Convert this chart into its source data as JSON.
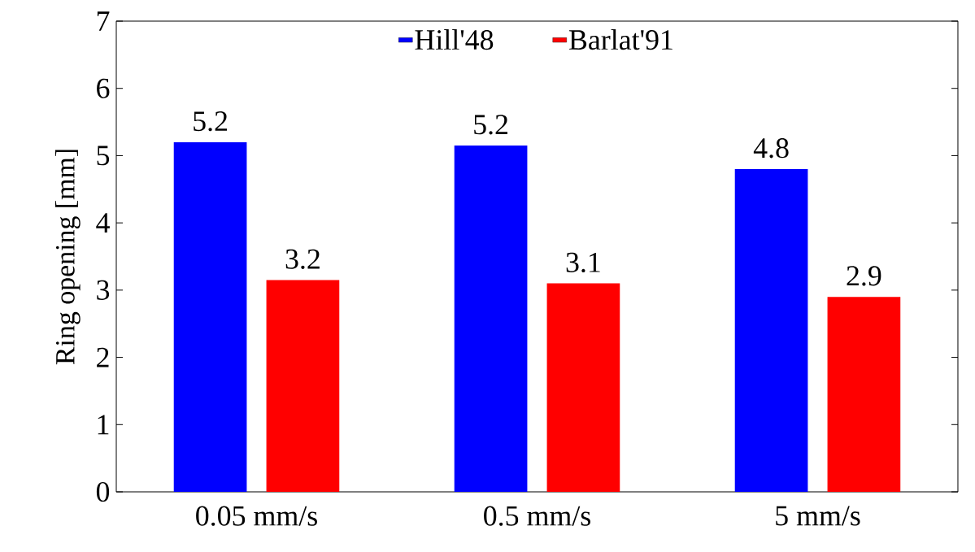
{
  "chart_data": {
    "type": "bar",
    "ylabel": "Ring opening [mm]",
    "categories": [
      "0.05 mm/s",
      "0.5 mm/s",
      "5 mm/s"
    ],
    "series": [
      {
        "name": "Hill'48",
        "color": "#0000ff",
        "values": [
          5.2,
          5.15,
          4.8
        ],
        "value_labels": [
          "5.2",
          "5.2",
          "4.8"
        ]
      },
      {
        "name": "Barlat'91",
        "color": "#ff0000",
        "values": [
          3.15,
          3.1,
          2.9
        ],
        "value_labels": [
          "3.2",
          "3.1",
          "2.9"
        ]
      }
    ],
    "ylim": [
      0,
      7
    ],
    "yticks": [
      0,
      1,
      2,
      3,
      4,
      5,
      6,
      7
    ],
    "legend": "top"
  }
}
